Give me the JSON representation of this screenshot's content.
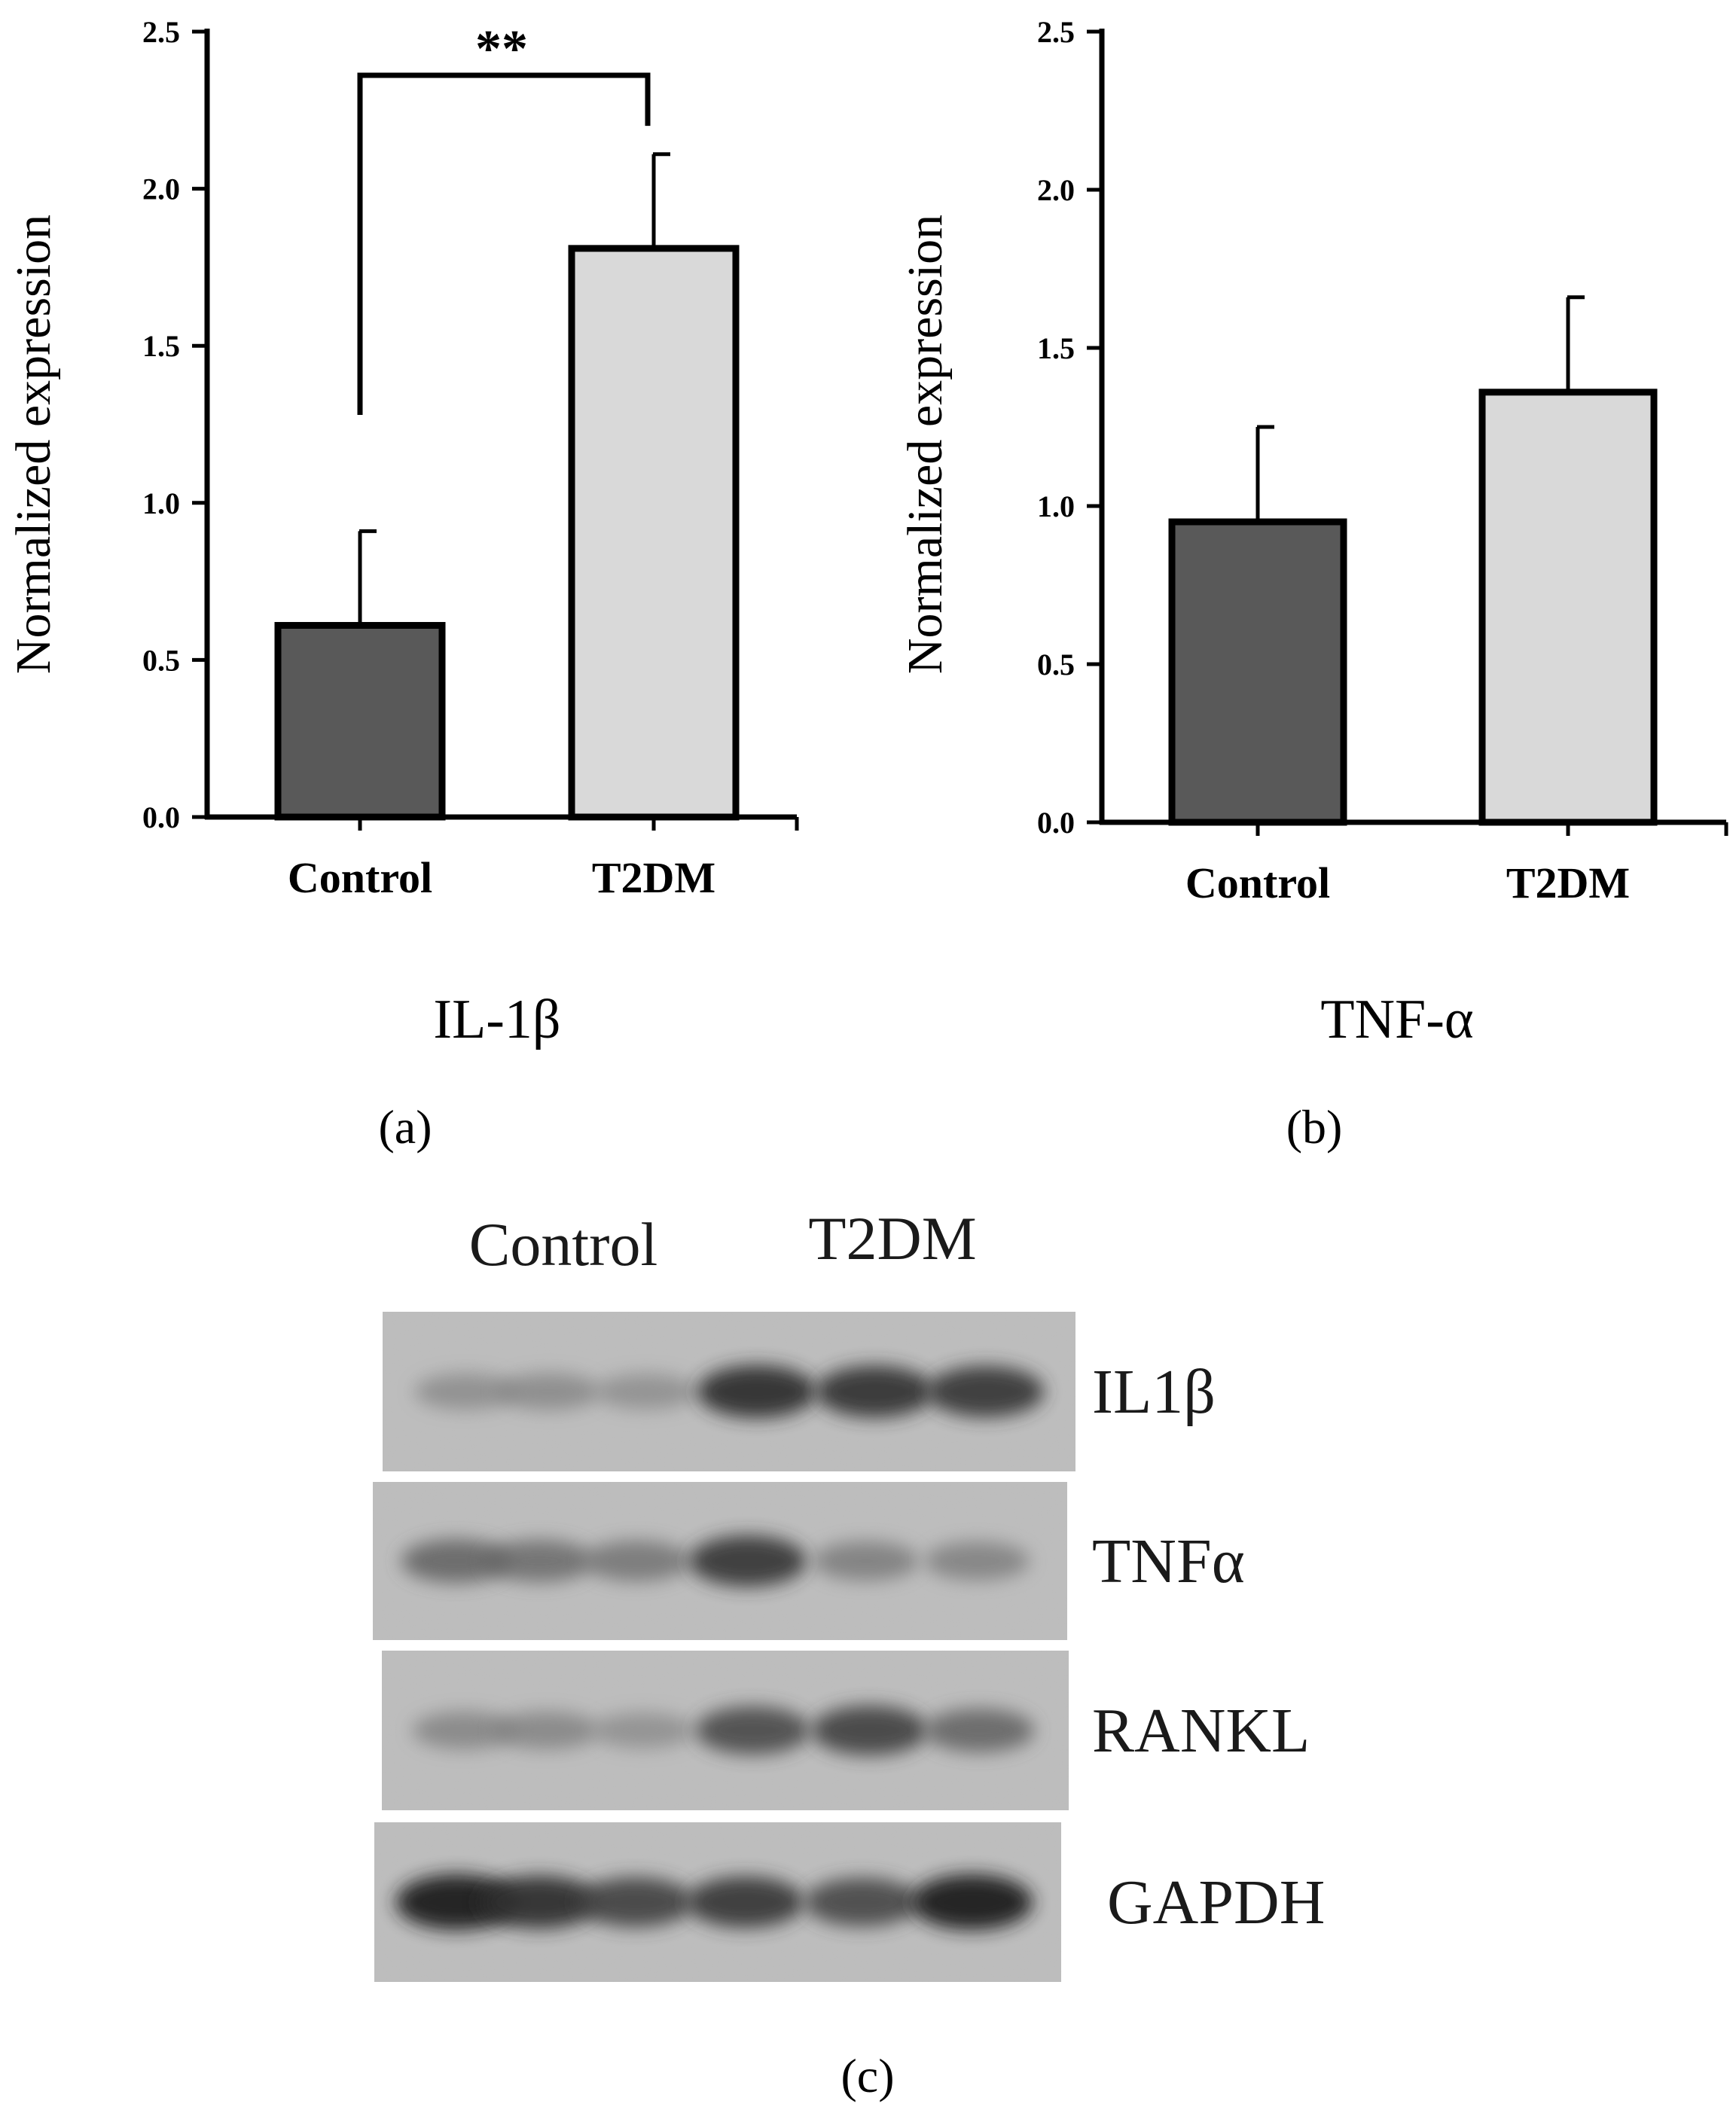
{
  "chart_data": [
    {
      "type": "bar",
      "panel": "(a)",
      "title": "IL-1β",
      "ylabel": "Normalized expression",
      "categories": [
        "Control",
        "T2DM"
      ],
      "values": [
        0.61,
        1.81
      ],
      "errors": [
        0.3,
        0.3
      ],
      "bar_colors": [
        "#595959",
        "#d9d9d9"
      ],
      "ylim": [
        0,
        2.5
      ],
      "yticks": [
        "0.0",
        "0.5",
        "1.0",
        "1.5",
        "2.0",
        "2.5"
      ],
      "significance": "**"
    },
    {
      "type": "bar",
      "panel": "(b)",
      "title": "TNF-α",
      "ylabel": "Normalized expression",
      "categories": [
        "Control",
        "T2DM"
      ],
      "values": [
        0.95,
        1.36
      ],
      "errors": [
        0.3,
        0.3
      ],
      "bar_colors": [
        "#595959",
        "#d9d9d9"
      ],
      "ylim": [
        0,
        2.5
      ],
      "yticks": [
        "0.0",
        "0.5",
        "1.0",
        "1.5",
        "2.0",
        "2.5"
      ]
    }
  ],
  "blot": {
    "panel": "(c)",
    "group_labels": [
      "Control",
      "T2DM"
    ],
    "rows": [
      {
        "label": "IL1β",
        "intensities": [
          0.3,
          0.32,
          0.28,
          0.85,
          0.82,
          0.8
        ]
      },
      {
        "label": "TNFα",
        "intensities": [
          0.55,
          0.5,
          0.45,
          0.8,
          0.4,
          0.38
        ]
      },
      {
        "label": "RANKL",
        "intensities": [
          0.35,
          0.35,
          0.28,
          0.7,
          0.75,
          0.55
        ]
      },
      {
        "label": "GAPDH",
        "intensities": [
          0.95,
          0.85,
          0.75,
          0.8,
          0.72,
          0.95
        ]
      }
    ]
  }
}
